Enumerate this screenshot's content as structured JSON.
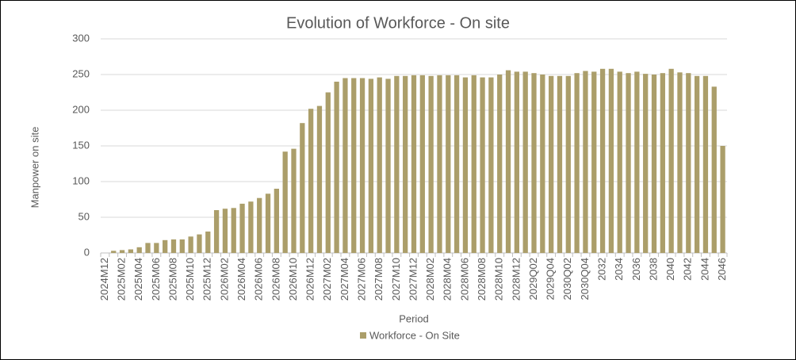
{
  "chart_data": {
    "type": "bar",
    "title": "Evolution of Workforce - On site",
    "x_label": "Period",
    "y_label": "Manpower on site",
    "categories": [
      "2024M12",
      null,
      "2025M02",
      null,
      "2025M04",
      null,
      "2025M06",
      null,
      "2025M08",
      null,
      "2025M10",
      null,
      "2025M12",
      null,
      "2026M02",
      null,
      "2026M04",
      null,
      "2026M06",
      null,
      "2026M08",
      null,
      "2026M10",
      null,
      "2026M12",
      null,
      "2027M02",
      null,
      "2027M04",
      null,
      "2027M06",
      null,
      "2027M08",
      null,
      "2027M10",
      null,
      "2027M12",
      null,
      "2028M02",
      null,
      "2028M04",
      null,
      "2028M06",
      null,
      "2028M08",
      null,
      "2028M10",
      null,
      "2028M12",
      null,
      "2029Q02",
      null,
      "2029Q04",
      null,
      "2030Q02",
      null,
      "2030Q04",
      null,
      "2032",
      null,
      "2034",
      null,
      "2036",
      null,
      "2038",
      null,
      "2040",
      null,
      "2042",
      null,
      "2044",
      null,
      "2046"
    ],
    "series": [
      {
        "name": "Workforce - On Site",
        "color": "#ab9e6a",
        "values": [
          0,
          3,
          4,
          5,
          8,
          14,
          14,
          18,
          19,
          19,
          23,
          26,
          30,
          60,
          62,
          63,
          69,
          72,
          77,
          83,
          90,
          142,
          146,
          182,
          202,
          206,
          225,
          240,
          245,
          245,
          245,
          244,
          246,
          244,
          248,
          248,
          249,
          249,
          248,
          249,
          249,
          249,
          246,
          249,
          246,
          246,
          250,
          256,
          254,
          254,
          252,
          250,
          248,
          248,
          248,
          252,
          255,
          254,
          258,
          258,
          254,
          252,
          254,
          251,
          250,
          252,
          258,
          253,
          252,
          248,
          248,
          233,
          150
        ]
      }
    ],
    "ylim": [
      0,
      300
    ],
    "yticks": [
      0,
      50,
      100,
      150,
      200,
      250,
      300
    ],
    "grid": true,
    "legend": "bottom"
  }
}
